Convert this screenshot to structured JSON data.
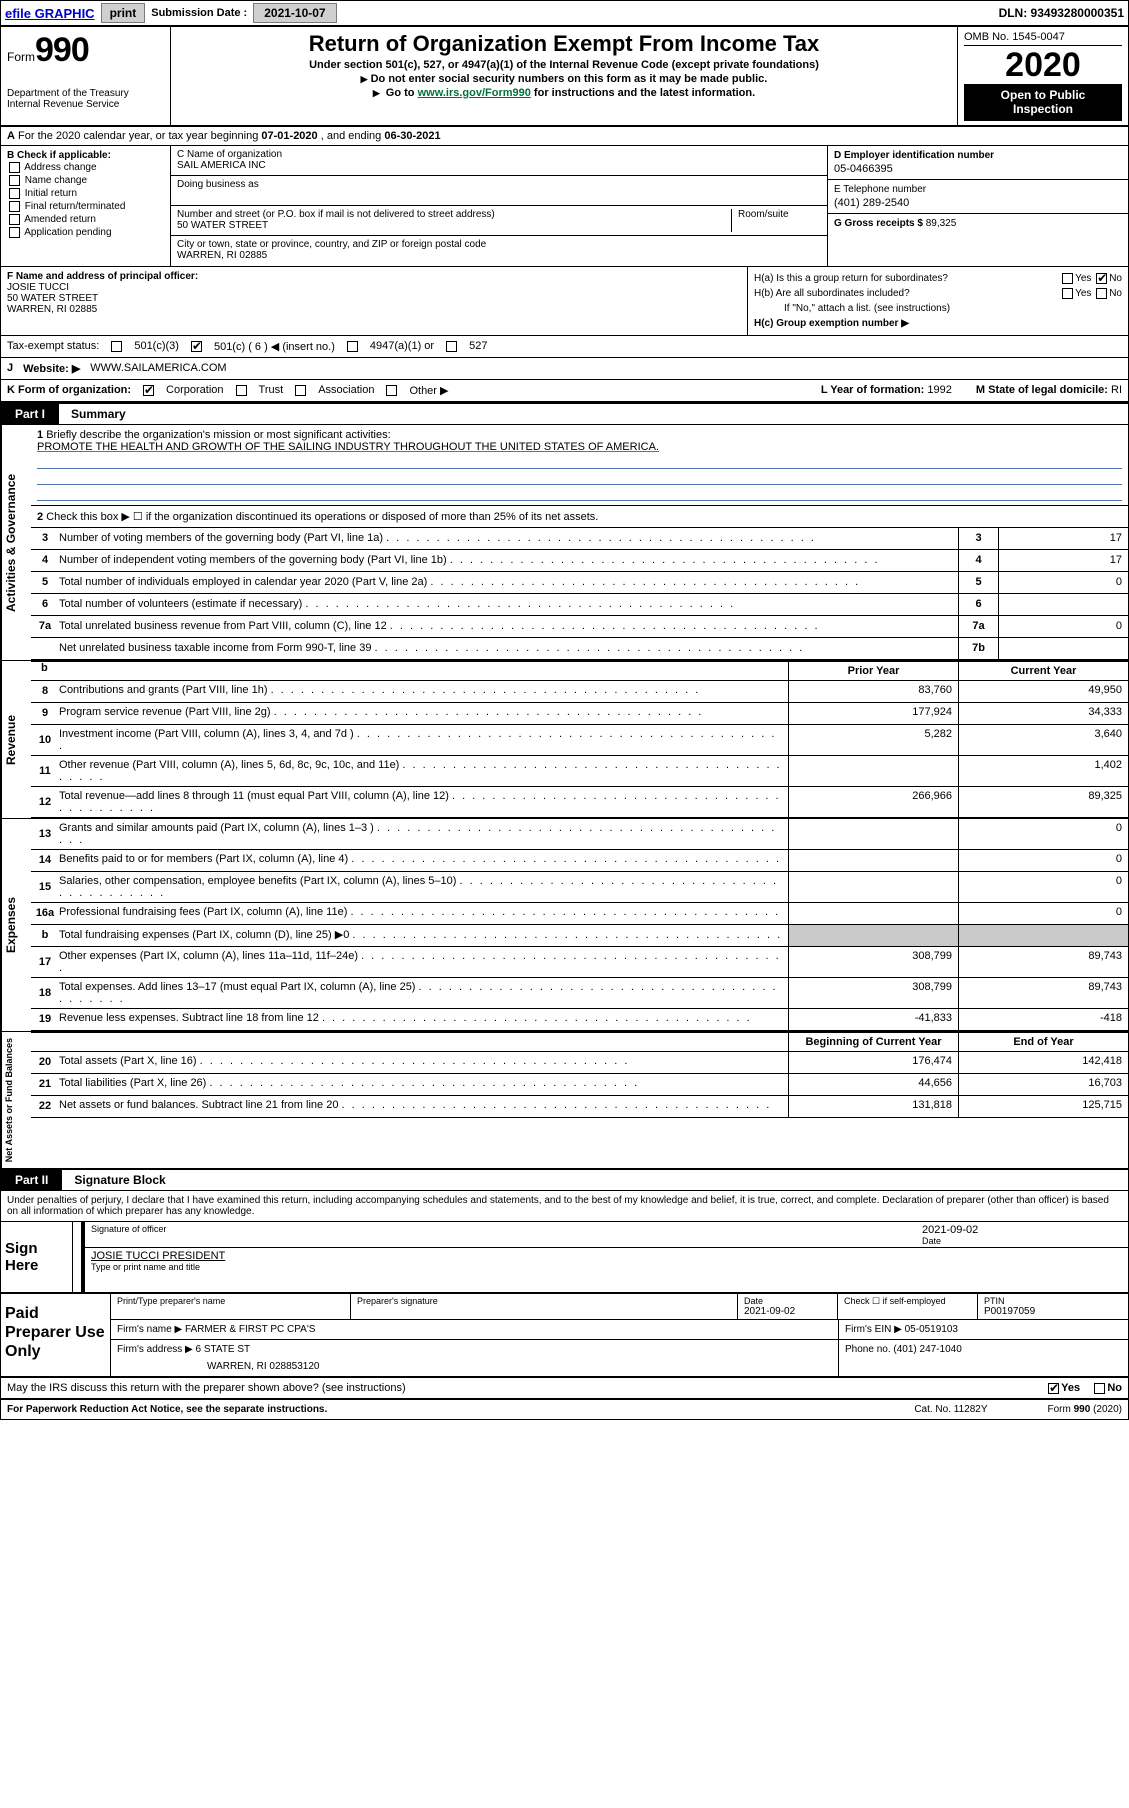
{
  "topbar": {
    "efile": "efile GRAPHIC",
    "print": "print",
    "sub_label": "Submission Date :",
    "sub_date": "2021-10-07",
    "dln": "DLN: 93493280000351"
  },
  "header": {
    "form_word": "Form",
    "form_num": "990",
    "dept1": "Department of the Treasury",
    "dept2": "Internal Revenue Service",
    "title": "Return of Organization Exempt From Income Tax",
    "sub1": "Under section 501(c), 527, or 4947(a)(1) of the Internal Revenue Code (except private foundations)",
    "sub2": "Do not enter social security numbers on this form as it may be made public.",
    "sub3_pre": "Go to ",
    "sub3_link": "www.irs.gov/Form990",
    "sub3_post": " for instructions and the latest information.",
    "omb": "OMB No. 1545-0047",
    "year": "2020",
    "inspect1": "Open to Public",
    "inspect2": "Inspection"
  },
  "rowA": {
    "text_pre": "For the 2020 calendar year, or tax year beginning ",
    "begin": "07-01-2020",
    "mid": " , and ending ",
    "end": "06-30-2021"
  },
  "B": {
    "hdr": "B Check if applicable:",
    "i1": "Address change",
    "i2": "Name change",
    "i3": "Initial return",
    "i4": "Final return/terminated",
    "i5": "Amended return",
    "i6": "Application pending"
  },
  "C": {
    "name_lbl": "C Name of organization",
    "name": "SAIL AMERICA INC",
    "dba_lbl": "Doing business as",
    "dba": "",
    "addr_lbl": "Number and street (or P.O. box if mail is not delivered to street address)",
    "addr_room": "Room/suite",
    "addr": "50 WATER STREET",
    "city_lbl": "City or town, state or province, country, and ZIP or foreign postal code",
    "city": "WARREN, RI  02885"
  },
  "D": {
    "ein_lbl": "D Employer identification number",
    "ein": "05-0466395",
    "tel_lbl": "E Telephone number",
    "tel": "(401) 289-2540",
    "gross_lbl": "G Gross receipts $",
    "gross": "89,325"
  },
  "F": {
    "lbl": "F Name and address of principal officer:",
    "name": "JOSIE TUCCI",
    "addr1": "50 WATER STREET",
    "addr2": "WARREN, RI  02885"
  },
  "H": {
    "a": "H(a)  Is this a group return for subordinates?",
    "b": "H(b)  Are all subordinates included?",
    "b_note": "If \"No,\" attach a list. (see instructions)",
    "c": "H(c)  Group exemption number ▶",
    "yes": "Yes",
    "no": "No"
  },
  "status": {
    "lbl": "Tax-exempt status:",
    "o1": "501(c)(3)",
    "o2": "501(c) ( 6 ) ◀ (insert no.)",
    "o3": "4947(a)(1) or",
    "o4": "527"
  },
  "J": {
    "lbl": "J",
    "web_lbl": "Website: ▶",
    "web": "WWW.SAILAMERICA.COM"
  },
  "K": {
    "lbl": "K Form of organization:",
    "o1": "Corporation",
    "o2": "Trust",
    "o3": "Association",
    "o4": "Other ▶",
    "L": "L Year of formation:",
    "Lval": "1992",
    "M": "M State of legal domicile:",
    "Mval": "RI"
  },
  "partI": {
    "tab": "Part I",
    "title": "Summary"
  },
  "side": {
    "s1": "Activities & Governance",
    "s2": "Revenue",
    "s3": "Expenses",
    "s4": "Net Assets or Fund Balances"
  },
  "q1": {
    "n": "1",
    "txt": "Briefly describe the organization's mission or most significant activities:",
    "mission": "PROMOTE THE HEALTH AND GROWTH OF THE SAILING INDUSTRY THROUGHOUT THE UNITED STATES OF AMERICA."
  },
  "q2": {
    "n": "2",
    "txt": "Check this box ▶ ☐  if the organization discontinued its operations or disposed of more than 25% of its net assets."
  },
  "rows_a": [
    {
      "n": "3",
      "txt": "Number of voting members of the governing body (Part VI, line 1a)",
      "box": "3",
      "val": "17"
    },
    {
      "n": "4",
      "txt": "Number of independent voting members of the governing body (Part VI, line 1b)",
      "box": "4",
      "val": "17"
    },
    {
      "n": "5",
      "txt": "Total number of individuals employed in calendar year 2020 (Part V, line 2a)",
      "box": "5",
      "val": "0"
    },
    {
      "n": "6",
      "txt": "Total number of volunteers (estimate if necessary)",
      "box": "6",
      "val": ""
    },
    {
      "n": "7a",
      "txt": "Total unrelated business revenue from Part VIII, column (C), line 12",
      "box": "7a",
      "val": "0"
    },
    {
      "n": "",
      "txt": "Net unrelated business taxable income from Form 990-T, line 39",
      "box": "7b",
      "val": ""
    }
  ],
  "hdr_py": "Prior Year",
  "hdr_cy": "Current Year",
  "rows_rev": [
    {
      "n": "8",
      "txt": "Contributions and grants (Part VIII, line 1h)",
      "py": "83,760",
      "cy": "49,950"
    },
    {
      "n": "9",
      "txt": "Program service revenue (Part VIII, line 2g)",
      "py": "177,924",
      "cy": "34,333"
    },
    {
      "n": "10",
      "txt": "Investment income (Part VIII, column (A), lines 3, 4, and 7d )",
      "py": "5,282",
      "cy": "3,640"
    },
    {
      "n": "11",
      "txt": "Other revenue (Part VIII, column (A), lines 5, 6d, 8c, 9c, 10c, and 11e)",
      "py": "",
      "cy": "1,402"
    },
    {
      "n": "12",
      "txt": "Total revenue—add lines 8 through 11 (must equal Part VIII, column (A), line 12)",
      "py": "266,966",
      "cy": "89,325"
    }
  ],
  "rows_exp": [
    {
      "n": "13",
      "txt": "Grants and similar amounts paid (Part IX, column (A), lines 1–3 )",
      "py": "",
      "cy": "0"
    },
    {
      "n": "14",
      "txt": "Benefits paid to or for members (Part IX, column (A), line 4)",
      "py": "",
      "cy": "0"
    },
    {
      "n": "15",
      "txt": "Salaries, other compensation, employee benefits (Part IX, column (A), lines 5–10)",
      "py": "",
      "cy": "0"
    },
    {
      "n": "16a",
      "txt": "Professional fundraising fees (Part IX, column (A), line 11e)",
      "py": "",
      "cy": "0"
    },
    {
      "n": "b",
      "txt": "Total fundraising expenses (Part IX, column (D), line 25) ▶0",
      "py": "GRAY",
      "cy": "GRAY"
    },
    {
      "n": "17",
      "txt": "Other expenses (Part IX, column (A), lines 11a–11d, 11f–24e)",
      "py": "308,799",
      "cy": "89,743"
    },
    {
      "n": "18",
      "txt": "Total expenses. Add lines 13–17 (must equal Part IX, column (A), line 25)",
      "py": "308,799",
      "cy": "89,743"
    },
    {
      "n": "19",
      "txt": "Revenue less expenses. Subtract line 18 from line 12",
      "py": "-41,833",
      "cy": "-418"
    }
  ],
  "hdr_boy": "Beginning of Current Year",
  "hdr_eoy": "End of Year",
  "rows_net": [
    {
      "n": "20",
      "txt": "Total assets (Part X, line 16)",
      "py": "176,474",
      "cy": "142,418"
    },
    {
      "n": "21",
      "txt": "Total liabilities (Part X, line 26)",
      "py": "44,656",
      "cy": "16,703"
    },
    {
      "n": "22",
      "txt": "Net assets or fund balances. Subtract line 21 from line 20",
      "py": "131,818",
      "cy": "125,715"
    }
  ],
  "partII": {
    "tab": "Part II",
    "title": "Signature Block"
  },
  "decl": "Under penalties of perjury, I declare that I have examined this return, including accompanying schedules and statements, and to the best of my knowledge and belief, it is true, correct, and complete. Declaration of preparer (other than officer) is based on all information of which preparer has any knowledge.",
  "sign": {
    "left": "Sign Here",
    "sig_lbl": "Signature of officer",
    "date_lbl": "Date",
    "date": "2021-09-02",
    "name": "JOSIE TUCCI PRESIDENT",
    "name_lbl": "Type or print name and title"
  },
  "prep": {
    "left": "Paid Preparer Use Only",
    "h1": "Print/Type preparer's name",
    "h2": "Preparer's signature",
    "h3": "Date",
    "h3v": "2021-09-02",
    "h4": "Check ☐ if self-employed",
    "h5": "PTIN",
    "h5v": "P00197059",
    "firm_lbl": "Firm's name    ▶",
    "firm": "FARMER & FIRST PC CPA'S",
    "ein_lbl": "Firm's EIN ▶",
    "ein": "05-0519103",
    "addr_lbl": "Firm's address ▶",
    "addr1": "6 STATE ST",
    "addr2": "WARREN, RI  028853120",
    "phone_lbl": "Phone no.",
    "phone": "(401) 247-1040"
  },
  "discuss": {
    "q": "May the IRS discuss this return with the preparer shown above? (see instructions)",
    "yes": "Yes",
    "no": "No"
  },
  "footer": {
    "left": "For Paperwork Reduction Act Notice, see the separate instructions.",
    "mid": "Cat. No. 11282Y",
    "right": "Form 990 (2020)"
  }
}
